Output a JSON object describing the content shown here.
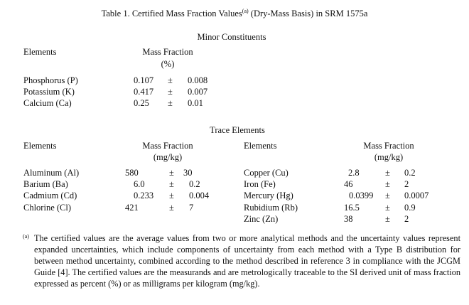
{
  "title": "Table 1.  Certified Mass Fraction Values",
  "title_sup": "(a)",
  "title_tail": " (Dry-Mass Basis) in SRM 1575a",
  "minor": {
    "heading": "Minor Constituents",
    "col_elements": "Elements",
    "col_mass": "Mass Fraction",
    "col_unit": "(%)",
    "rows": [
      {
        "name": "Phosphorus (P)",
        "value": "0.107",
        "pm": "±",
        "unc": "0.008"
      },
      {
        "name": "Potassium (K)",
        "value": "0.417",
        "pm": "±",
        "unc": "0.007"
      },
      {
        "name": "Calcium (Ca)",
        "value": "0.25",
        "pm": "±",
        "unc": "0.01"
      }
    ]
  },
  "trace": {
    "heading": "Trace Elements",
    "col_elements": "Elements",
    "col_mass": "Mass Fraction",
    "col_unit": "(mg/kg)",
    "left_rows": [
      {
        "name": "Aluminum (Al)",
        "value": "580",
        "pm": "±",
        "unc": "30"
      },
      {
        "name": "Barium (Ba)",
        "value": "6.0",
        "pm": "±",
        "unc": "0.2"
      },
      {
        "name": "Cadmium (Cd)",
        "value": "0.233",
        "pm": "±",
        "unc": "0.004"
      },
      {
        "name": "Chlorine (Cl)",
        "value": "421",
        "pm": "±",
        "unc": "7"
      }
    ],
    "right_rows": [
      {
        "name": "Copper (Cu)",
        "value": "2.8",
        "pm": "±",
        "unc": "0.2"
      },
      {
        "name": "Iron (Fe)",
        "value": "46",
        "pm": "±",
        "unc": "2"
      },
      {
        "name": "Mercury (Hg)",
        "value": "0.0399",
        "pm": "±",
        "unc": "0.0007"
      },
      {
        "name": "Rubidium (Rb)",
        "value": "16.5",
        "pm": "±",
        "unc": "0.9"
      },
      {
        "name": "Zinc (Zn)",
        "value": "38",
        "pm": "±",
        "unc": "2"
      }
    ]
  },
  "footnote": {
    "marker": "(a)",
    "text": "The certified values are the average values from two or more analytical methods and the uncertainty values represent expanded uncertainties, which include components of uncertainty from each method with a Type B distribution for between method uncertainty, combined according to the method described in reference 3 in compliance with the JCGM Guide [4].  The certified values are the measurands and are metrologically traceable to the SI derived unit of mass fraction expressed as percent (%) or as milligrams per kilogram (mg/kg)."
  }
}
